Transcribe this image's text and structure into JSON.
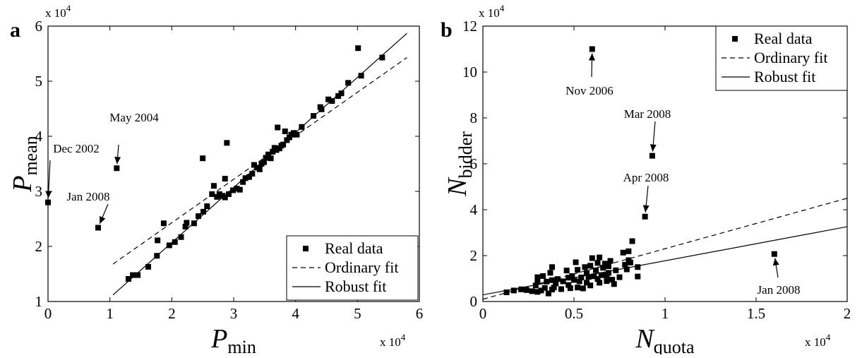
{
  "chart_data": [
    {
      "panel_label": "a",
      "type": "scatter",
      "xlabel": {
        "main": "P",
        "sub": "min"
      },
      "ylabel": {
        "main": "P",
        "sub": "mean"
      },
      "xlim": [
        0,
        60000
      ],
      "ylim": [
        10000,
        60000
      ],
      "xticks": [
        0,
        10000,
        20000,
        30000,
        40000,
        50000,
        60000
      ],
      "xtick_labels": [
        "0",
        "1",
        "2",
        "3",
        "4",
        "5",
        "6"
      ],
      "yticks": [
        10000,
        20000,
        30000,
        40000,
        50000,
        60000
      ],
      "ytick_labels": [
        "1",
        "2",
        "3",
        "4",
        "5",
        "6"
      ],
      "x_multiplier_label": "x 10",
      "x_multiplier_exp": "4",
      "y_multiplier_label": "x 10",
      "y_multiplier_exp": "4",
      "legend": {
        "position": "bottom-right",
        "entries": [
          "Real data",
          "Ordinary fit",
          "Robust fit"
        ]
      },
      "series": [
        {
          "name": "Real data",
          "style": "square-marker",
          "points": [
            [
              0,
              28000
            ],
            [
              8100,
              23400
            ],
            [
              11100,
              34200
            ],
            [
              13000,
              14100
            ],
            [
              13700,
              14800
            ],
            [
              14500,
              14800
            ],
            [
              16200,
              16300
            ],
            [
              17600,
              18300
            ],
            [
              17700,
              21100
            ],
            [
              18700,
              24200
            ],
            [
              19600,
              20200
            ],
            [
              20500,
              20800
            ],
            [
              21500,
              21700
            ],
            [
              22200,
              23600
            ],
            [
              22400,
              24300
            ],
            [
              23600,
              24200
            ],
            [
              24300,
              25500
            ],
            [
              25100,
              26300
            ],
            [
              25000,
              36000
            ],
            [
              25700,
              27300
            ],
            [
              26500,
              29500
            ],
            [
              26800,
              31000
            ],
            [
              27300,
              29000
            ],
            [
              27700,
              29500
            ],
            [
              28200,
              29200
            ],
            [
              28600,
              32300
            ],
            [
              28900,
              38800
            ],
            [
              28600,
              28900
            ],
            [
              29200,
              29500
            ],
            [
              29900,
              30200
            ],
            [
              30500,
              30500
            ],
            [
              31000,
              30300
            ],
            [
              31500,
              31700
            ],
            [
              31900,
              32400
            ],
            [
              32500,
              32600
            ],
            [
              33000,
              33200
            ],
            [
              33300,
              34800
            ],
            [
              33800,
              34300
            ],
            [
              34200,
              34000
            ],
            [
              34500,
              35000
            ],
            [
              34900,
              35300
            ],
            [
              35200,
              36100
            ],
            [
              35600,
              36700
            ],
            [
              36000,
              36000
            ],
            [
              36300,
              37200
            ],
            [
              36600,
              37900
            ],
            [
              36900,
              37500
            ],
            [
              37100,
              41600
            ],
            [
              37400,
              37800
            ],
            [
              37700,
              38300
            ],
            [
              38000,
              38500
            ],
            [
              38300,
              40900
            ],
            [
              38600,
              39300
            ],
            [
              39000,
              39800
            ],
            [
              39300,
              40300
            ],
            [
              39700,
              40600
            ],
            [
              40200,
              40300
            ],
            [
              41000,
              41700
            ],
            [
              42900,
              43700
            ],
            [
              44000,
              45300
            ],
            [
              44200,
              44900
            ],
            [
              45300,
              46700
            ],
            [
              45900,
              46400
            ],
            [
              46900,
              47300
            ],
            [
              47400,
              47800
            ],
            [
              48500,
              49700
            ],
            [
              50100,
              56000
            ],
            [
              50600,
              51000
            ],
            [
              54000,
              54300
            ]
          ]
        },
        {
          "name": "Ordinary fit",
          "style": "dashed",
          "line": [
            [
              10500,
              16800
            ],
            [
              58000,
              54300
            ]
          ]
        },
        {
          "name": "Robust fit",
          "style": "solid",
          "line": [
            [
              10500,
              11200
            ],
            [
              58000,
              58700
            ]
          ]
        }
      ],
      "annotations": [
        {
          "text": "Dec 2002",
          "target": [
            0,
            28000
          ]
        },
        {
          "text": "May 2004",
          "target": [
            11100,
            34200
          ]
        },
        {
          "text": "Jan 2008",
          "target": [
            8100,
            23400
          ]
        }
      ]
    },
    {
      "panel_label": "b",
      "type": "scatter",
      "xlabel": {
        "main": "N",
        "sub": "quota"
      },
      "ylabel": {
        "main": "N",
        "sub": "bidder"
      },
      "xlim": [
        0,
        20000
      ],
      "ylim": [
        0,
        120000
      ],
      "xticks": [
        0,
        5000,
        10000,
        15000,
        20000
      ],
      "xtick_labels": [
        "0",
        "0.5",
        "1",
        "1.5",
        "2"
      ],
      "yticks": [
        0,
        20000,
        40000,
        60000,
        80000,
        100000,
        120000
      ],
      "ytick_labels": [
        "0",
        "2",
        "4",
        "6",
        "8",
        "10",
        "12"
      ],
      "x_multiplier_label": "x 10",
      "x_multiplier_exp": "4",
      "y_multiplier_label": "x 10",
      "y_multiplier_exp": "4",
      "legend": {
        "position": "top-right",
        "entries": [
          "Real data",
          "Ordinary fit",
          "Robust fit"
        ]
      },
      "series": [
        {
          "name": "Real data",
          "style": "square-marker",
          "points": [
            [
              1300,
              4000
            ],
            [
              1700,
              4800
            ],
            [
              2100,
              5300
            ],
            [
              2400,
              5000
            ],
            [
              2700,
              4500
            ],
            [
              2900,
              7000
            ],
            [
              3000,
              10600
            ],
            [
              3000,
              8600
            ],
            [
              3000,
              4200
            ],
            [
              3200,
              4800
            ],
            [
              3300,
              11100
            ],
            [
              3400,
              5900
            ],
            [
              3500,
              8700
            ],
            [
              3600,
              3500
            ],
            [
              3700,
              12500
            ],
            [
              3800,
              15000
            ],
            [
              3800,
              9300
            ],
            [
              3800,
              5200
            ],
            [
              3900,
              6100
            ],
            [
              4000,
              7900
            ],
            [
              4100,
              9800
            ],
            [
              4300,
              5400
            ],
            [
              4400,
              8800
            ],
            [
              4600,
              13500
            ],
            [
              4700,
              10400
            ],
            [
              4700,
              7200
            ],
            [
              4800,
              5800
            ],
            [
              4900,
              11100
            ],
            [
              5000,
              9400
            ],
            [
              5100,
              17100
            ],
            [
              5200,
              13800
            ],
            [
              5200,
              6100
            ],
            [
              5300,
              8800
            ],
            [
              5400,
              10500
            ],
            [
              5500,
              5700
            ],
            [
              5600,
              15000
            ],
            [
              5700,
              12500
            ],
            [
              5700,
              8200
            ],
            [
              5800,
              10700
            ],
            [
              5900,
              7000
            ],
            [
              5900,
              15600
            ],
            [
              6000,
              18900
            ],
            [
              6100,
              11000
            ],
            [
              6200,
              13600
            ],
            [
              6300,
              16800
            ],
            [
              6300,
              9800
            ],
            [
              6400,
              8200
            ],
            [
              6400,
              19200
            ],
            [
              6500,
              11500
            ],
            [
              6600,
              14700
            ],
            [
              6700,
              16500
            ],
            [
              6800,
              8900
            ],
            [
              6800,
              11400
            ],
            [
              6900,
              15400
            ],
            [
              6900,
              12500
            ],
            [
              7000,
              17700
            ],
            [
              7100,
              9500
            ],
            [
              7200,
              7600
            ],
            [
              7300,
              13600
            ],
            [
              7500,
              10600
            ],
            [
              7700,
              21300
            ],
            [
              7800,
              16000
            ],
            [
              7900,
              14000
            ],
            [
              8000,
              21900
            ],
            [
              8000,
              18000
            ],
            [
              8100,
              17000
            ],
            [
              8200,
              26300
            ],
            [
              8500,
              10900
            ],
            [
              8500,
              15000
            ],
            [
              6000,
              110000
            ],
            [
              9300,
              63500
            ],
            [
              8900,
              37000
            ],
            [
              16000,
              20700
            ]
          ]
        },
        {
          "name": "Ordinary fit",
          "style": "dashed",
          "line": [
            [
              0,
              1000
            ],
            [
              20000,
              45000
            ]
          ]
        },
        {
          "name": "Robust fit",
          "style": "solid",
          "line": [
            [
              0,
              2900
            ],
            [
              20000,
              32600
            ]
          ]
        }
      ],
      "annotations": [
        {
          "text": "Nov 2006",
          "target": [
            6000,
            110000
          ]
        },
        {
          "text": "Mar 2008",
          "target": [
            9300,
            63500
          ]
        },
        {
          "text": "Apr 2008",
          "target": [
            8900,
            37000
          ]
        },
        {
          "text": "Jan 2008",
          "target": [
            16000,
            20700
          ]
        }
      ]
    }
  ]
}
